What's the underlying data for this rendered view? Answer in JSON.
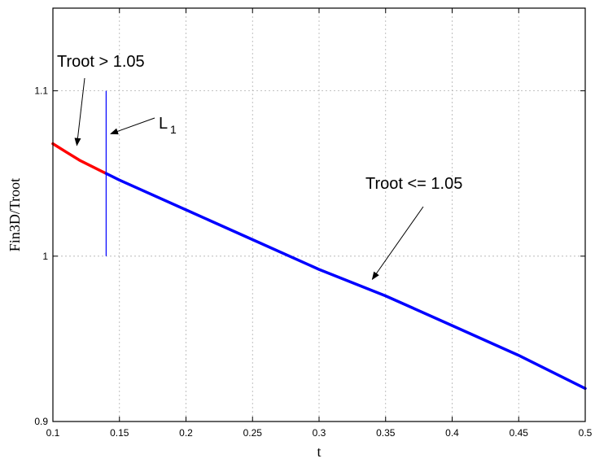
{
  "chart_data": {
    "type": "line",
    "title": "",
    "xlabel": "t",
    "ylabel": "Fin3D/Troot",
    "xlim": [
      0.1,
      0.5
    ],
    "ylim": [
      0.9,
      1.15
    ],
    "x_ticks": [
      0.1,
      0.15,
      0.2,
      0.25,
      0.3,
      0.35,
      0.4,
      0.45,
      0.5
    ],
    "x_tick_labels": [
      "0.1",
      "0.15",
      "0.2",
      "0.25",
      "0.3",
      "0.35",
      "0.4",
      "0.45",
      "0.5"
    ],
    "y_ticks": [
      0.9,
      1.0,
      1.1
    ],
    "y_tick_labels": [
      "0.9",
      "1",
      "1.1"
    ],
    "grid": true,
    "series": [
      {
        "color": "#ff0000",
        "x": [
          0.1,
          0.11,
          0.12,
          0.13,
          0.14
        ],
        "y": [
          1.068,
          1.063,
          1.058,
          1.054,
          1.05
        ]
      },
      {
        "color": "#0000ff",
        "x": [
          0.14,
          0.15,
          0.2,
          0.25,
          0.3,
          0.35,
          0.4,
          0.45,
          0.5
        ],
        "y": [
          1.05,
          1.046,
          1.028,
          1.01,
          0.992,
          0.976,
          0.958,
          0.94,
          0.92
        ]
      }
    ],
    "vertical_line": {
      "x": 0.14,
      "y_range": [
        1.0,
        1.1
      ],
      "color": "#0000ff"
    },
    "annotations": [
      {
        "text": "Troot > 1.05",
        "target": [
          0.118,
          1.067
        ]
      },
      {
        "text": "L",
        "subscript": "1",
        "target": [
          0.141,
          1.074
        ]
      },
      {
        "text": "Troot <= 1.05",
        "target": [
          0.34,
          0.986
        ]
      }
    ]
  }
}
